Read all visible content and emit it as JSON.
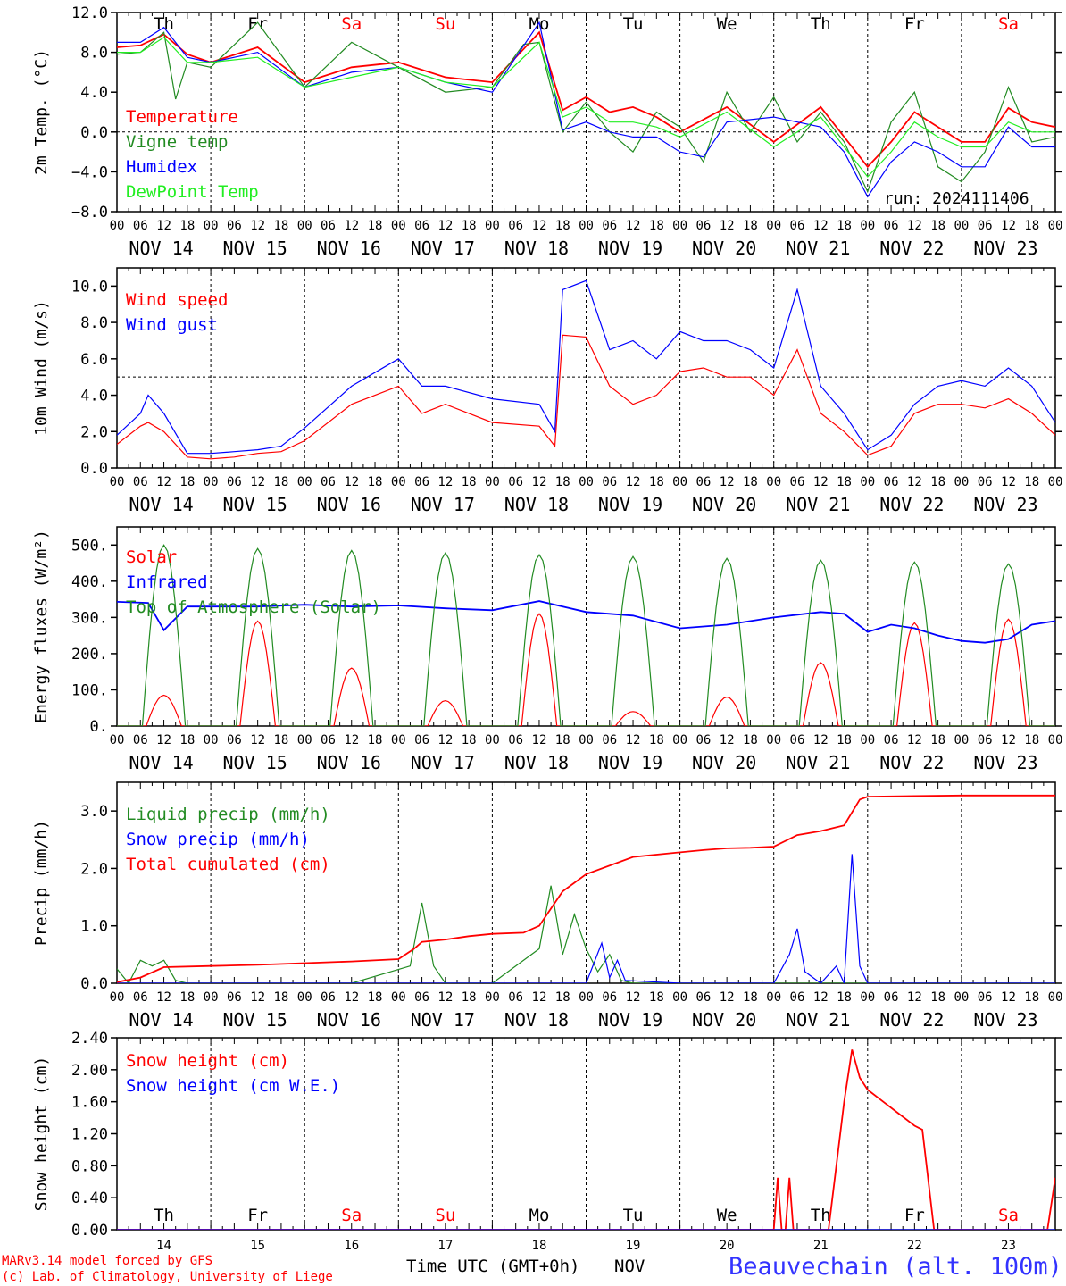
{
  "meta": {
    "run_label": "run: 2024111406",
    "footer_line1": "MARv3.14 model forced by GFS",
    "footer_line2": "(c) Lab. of Climatology, University of Liege",
    "x_axis_title": "Time UTC (GMT+0h)",
    "x_axis_month": "NOV",
    "station": "Beauvechain (alt. 100m)"
  },
  "days": {
    "hour_ticks": [
      "00",
      "06",
      "12",
      "18"
    ],
    "date_labels": [
      "NOV 14",
      "NOV 15",
      "NOV 16",
      "NOV 17",
      "NOV 18",
      "NOV 19",
      "NOV 20",
      "NOV 21",
      "NOV 22",
      "NOV 23"
    ],
    "weekdays": [
      "Th",
      "Fr",
      "Sa",
      "Su",
      "Mo",
      "Tu",
      "We",
      "Th",
      "Fr",
      "Sa"
    ],
    "weekday_colors": [
      "#000000",
      "#000000",
      "#ff0000",
      "#ff0000",
      "#000000",
      "#000000",
      "#000000",
      "#000000",
      "#000000",
      "#ff0000"
    ],
    "day_numbers": [
      "14",
      "15",
      "16",
      "17",
      "18",
      "19",
      "20",
      "21",
      "22",
      "23"
    ]
  },
  "colors": {
    "red": "#ff0000",
    "green": "#228b22",
    "blue": "#0000ff",
    "lightgreen": "#22ee22",
    "title_blue": "#3333ff"
  },
  "chart_data": [
    {
      "type": "line",
      "ylabel": "2m Temp. (°C)",
      "ylim": [
        -8,
        12
      ],
      "yticks": [
        "12.0",
        "8.0",
        "4.0",
        "0.0",
        "−4.0",
        "−8.0"
      ],
      "ytick_values": [
        12,
        8,
        4,
        0,
        -4,
        -8
      ],
      "reference_line": 0,
      "x_unit": "hours since NOV 14 00 UTC",
      "series": [
        {
          "name": "Temperature",
          "color": "#ff0000",
          "x": [
            0,
            6,
            12,
            18,
            24,
            36,
            48,
            60,
            72,
            84,
            96,
            108,
            114,
            120,
            126,
            132,
            138,
            144,
            156,
            168,
            180,
            192,
            198,
            204,
            210,
            216,
            222,
            228,
            234,
            240
          ],
          "y": [
            8.5,
            8.7,
            9.8,
            7.8,
            7.0,
            8.5,
            5.0,
            6.5,
            7.0,
            5.5,
            5.0,
            10.0,
            2.2,
            3.5,
            2.0,
            2.5,
            1.5,
            0.0,
            2.5,
            -1.0,
            2.5,
            -3.5,
            -1.0,
            2.0,
            0.5,
            -1.0,
            -1.0,
            2.4,
            1.0,
            0.5
          ]
        },
        {
          "name": "Vigne temp",
          "color": "#228b22",
          "x": [
            0,
            6,
            12,
            15,
            18,
            24,
            36,
            48,
            60,
            72,
            84,
            96,
            104,
            108,
            114,
            120,
            126,
            132,
            138,
            144,
            150,
            156,
            162,
            168,
            174,
            180,
            186,
            192,
            198,
            204,
            210,
            216,
            222,
            228,
            234,
            240
          ],
          "y": [
            7.8,
            8.0,
            10.0,
            3.3,
            7.0,
            6.5,
            11.0,
            4.5,
            9.0,
            6.5,
            4.0,
            4.5,
            8.8,
            9.0,
            0.0,
            3.0,
            0.0,
            -2.0,
            2.0,
            0.5,
            -3.0,
            4.0,
            0.0,
            3.5,
            -1.0,
            2.0,
            -1.0,
            -6.0,
            1.0,
            4.0,
            -3.5,
            -5.0,
            -2.0,
            4.5,
            -1.0,
            -0.5
          ]
        },
        {
          "name": "Humidex",
          "color": "#0000ff",
          "x": [
            0,
            6,
            12,
            18,
            24,
            36,
            48,
            60,
            72,
            84,
            96,
            108,
            114,
            120,
            126,
            132,
            138,
            144,
            150,
            156,
            168,
            180,
            186,
            192,
            198,
            204,
            210,
            216,
            222,
            228,
            234,
            240
          ],
          "y": [
            9.0,
            9.0,
            10.5,
            7.5,
            7.0,
            8.0,
            4.5,
            6.0,
            6.5,
            5.0,
            4.0,
            11.0,
            0.2,
            1.0,
            0.0,
            -0.5,
            -0.5,
            -2.0,
            -2.5,
            1.0,
            1.5,
            0.5,
            -2.0,
            -6.5,
            -3.0,
            -1.0,
            -2.0,
            -3.5,
            -3.5,
            0.5,
            -1.5,
            -1.5
          ]
        },
        {
          "name": "DewPoint Temp",
          "color": "#22ee22",
          "x": [
            0,
            6,
            12,
            18,
            24,
            36,
            48,
            60,
            72,
            84,
            96,
            108,
            114,
            120,
            126,
            132,
            138,
            144,
            156,
            168,
            180,
            192,
            198,
            204,
            210,
            216,
            222,
            228,
            234,
            240
          ],
          "y": [
            8.0,
            8.0,
            9.5,
            7.0,
            7.0,
            7.5,
            4.5,
            5.5,
            6.5,
            5.0,
            4.5,
            9.0,
            1.5,
            2.5,
            1.0,
            1.0,
            0.5,
            -0.5,
            2.0,
            -1.5,
            1.5,
            -4.5,
            -2.0,
            1.0,
            -0.5,
            -1.5,
            -1.5,
            1.0,
            0.0,
            0.0
          ]
        }
      ]
    },
    {
      "type": "line",
      "ylabel": "10m Wind (m/s)",
      "ylim": [
        0,
        11
      ],
      "yticks": [
        "10.0",
        "8.0",
        "6.0",
        "4.0",
        "2.0",
        "0.0"
      ],
      "ytick_values": [
        10,
        8,
        6,
        4,
        2,
        0
      ],
      "reference_line": 5,
      "x_unit": "hours since NOV 14 00 UTC",
      "series": [
        {
          "name": "Wind speed",
          "color": "#ff0000",
          "x": [
            0,
            6,
            8,
            12,
            18,
            24,
            30,
            36,
            42,
            48,
            60,
            72,
            78,
            84,
            96,
            108,
            112,
            114,
            120,
            126,
            132,
            138,
            144,
            150,
            156,
            162,
            168,
            174,
            180,
            186,
            192,
            198,
            204,
            210,
            216,
            222,
            228,
            234,
            240
          ],
          "y": [
            1.3,
            2.3,
            2.5,
            2.0,
            0.6,
            0.5,
            0.6,
            0.8,
            0.9,
            1.5,
            3.5,
            4.5,
            3.0,
            3.5,
            2.5,
            2.3,
            1.2,
            7.3,
            7.2,
            4.5,
            3.5,
            4.0,
            5.3,
            5.5,
            5.0,
            5.0,
            4.0,
            6.5,
            3.0,
            2.0,
            0.7,
            1.2,
            3.0,
            3.5,
            3.5,
            3.3,
            3.8,
            3.0,
            1.8
          ]
        },
        {
          "name": "Wind gust",
          "color": "#0000ff",
          "x": [
            0,
            6,
            8,
            12,
            18,
            24,
            30,
            36,
            42,
            48,
            60,
            72,
            78,
            84,
            96,
            108,
            112,
            114,
            120,
            126,
            132,
            138,
            144,
            150,
            156,
            162,
            168,
            174,
            180,
            186,
            192,
            198,
            204,
            210,
            216,
            222,
            228,
            234,
            240
          ],
          "y": [
            1.8,
            3.0,
            4.0,
            3.0,
            0.8,
            0.8,
            0.9,
            1.0,
            1.2,
            2.2,
            4.5,
            6.0,
            4.5,
            4.5,
            3.8,
            3.5,
            2.0,
            9.8,
            10.3,
            6.5,
            7.0,
            6.0,
            7.5,
            7.0,
            7.0,
            6.5,
            5.5,
            9.8,
            4.5,
            3.0,
            1.0,
            1.8,
            3.5,
            4.5,
            4.8,
            4.5,
            5.5,
            4.5,
            2.5
          ]
        }
      ]
    },
    {
      "type": "line",
      "ylabel": "Energy fluxes (W/m²)",
      "ylim": [
        0,
        550
      ],
      "yticks": [
        "500.",
        "400.",
        "300.",
        "200.",
        "100.",
        "0."
      ],
      "ytick_values": [
        500,
        400,
        300,
        200,
        100,
        0
      ],
      "x_unit": "hours since NOV 14 00 UTC",
      "series": [
        {
          "name": "Solar",
          "color": "#ff0000",
          "daily_peak": [
            85,
            290,
            160,
            70,
            310,
            40,
            80,
            175,
            285,
            295
          ]
        },
        {
          "name": "Infrared",
          "color": "#0000ff",
          "x": [
            0,
            8,
            12,
            18,
            24,
            36,
            48,
            60,
            72,
            84,
            96,
            108,
            120,
            132,
            144,
            156,
            168,
            180,
            186,
            192,
            198,
            204,
            210,
            216,
            222,
            228,
            234,
            240
          ],
          "y": [
            343,
            340,
            265,
            330,
            330,
            330,
            335,
            330,
            333,
            325,
            320,
            345,
            315,
            305,
            270,
            280,
            300,
            315,
            310,
            260,
            280,
            270,
            250,
            235,
            230,
            240,
            280,
            290
          ]
        },
        {
          "name": "Top of Atmosphere (Solar)",
          "color": "#228b22",
          "daily_peak": [
            500,
            490,
            485,
            478,
            473,
            468,
            463,
            458,
            453,
            448
          ]
        }
      ]
    },
    {
      "type": "line",
      "ylabel": "Precip (mm/h)",
      "ylim": [
        0,
        3.5
      ],
      "yticks": [
        "3.0",
        "2.0",
        "1.0",
        "0.0"
      ],
      "ytick_values": [
        3,
        2,
        1,
        0
      ],
      "x_unit": "hours since NOV 14 00 UTC",
      "series": [
        {
          "name": "Liquid precip (mm/h)",
          "color": "#228b22",
          "x": [
            0,
            3,
            6,
            9,
            12,
            15,
            18,
            24,
            60,
            75,
            78,
            81,
            84,
            96,
            108,
            111,
            114,
            117,
            120,
            123,
            126,
            129,
            132,
            144,
            240
          ],
          "y": [
            0.25,
            0.0,
            0.4,
            0.3,
            0.4,
            0.05,
            0.0,
            0.0,
            0.0,
            0.3,
            1.4,
            0.3,
            0.0,
            0.0,
            0.6,
            1.7,
            0.5,
            1.2,
            0.6,
            0.2,
            0.5,
            0.05,
            0.0,
            0.0,
            0.0
          ]
        },
        {
          "name": "Snow precip (mm/h)",
          "color": "#0000ff",
          "x": [
            0,
            120,
            124,
            126,
            128,
            130,
            144,
            168,
            172,
            174,
            176,
            180,
            184,
            186,
            188,
            190,
            192,
            240
          ],
          "y": [
            0.0,
            0.0,
            0.7,
            0.1,
            0.4,
            0.05,
            0.0,
            0.0,
            0.5,
            0.95,
            0.2,
            0.0,
            0.3,
            0.0,
            2.25,
            0.3,
            0.0,
            0.0
          ]
        },
        {
          "name": "Total cumulated (cm)",
          "color": "#ff0000",
          "x": [
            0,
            6,
            12,
            24,
            36,
            48,
            60,
            72,
            76,
            78,
            84,
            90,
            96,
            104,
            108,
            114,
            120,
            132,
            144,
            150,
            156,
            162,
            168,
            174,
            180,
            186,
            190,
            192,
            204,
            216,
            240
          ],
          "y": [
            0.02,
            0.1,
            0.28,
            0.3,
            0.32,
            0.35,
            0.38,
            0.42,
            0.6,
            0.72,
            0.76,
            0.82,
            0.86,
            0.88,
            1.0,
            1.6,
            1.9,
            2.2,
            2.28,
            2.32,
            2.35,
            2.36,
            2.38,
            2.58,
            2.65,
            2.75,
            3.2,
            3.25,
            3.26,
            3.27,
            3.27
          ]
        }
      ]
    },
    {
      "type": "line",
      "ylabel": "Snow height (cm)",
      "ylim": [
        0,
        2.4
      ],
      "yticks": [
        "2.40",
        "2.00",
        "1.60",
        "1.20",
        "0.80",
        "0.40",
        "0.00"
      ],
      "ytick_values": [
        2.4,
        2.0,
        1.6,
        1.2,
        0.8,
        0.4,
        0.0
      ],
      "x_unit": "hours since NOV 14 00 UTC",
      "series": [
        {
          "name": "Snow height (cm)",
          "color": "#ff0000",
          "x": [
            0,
            167,
            168,
            169,
            170,
            171,
            172,
            173,
            182,
            186,
            188,
            190,
            192,
            196,
            200,
            204,
            206,
            209,
            238,
            240
          ],
          "y": [
            0,
            0,
            0,
            0.65,
            0,
            0,
            0.65,
            0,
            0,
            1.6,
            2.25,
            1.9,
            1.75,
            1.6,
            1.45,
            1.3,
            1.25,
            0,
            0,
            0.65
          ]
        },
        {
          "name": "Snow height (cm W.E.)",
          "color": "#0000ff",
          "x": [
            0,
            240
          ],
          "y": [
            0,
            0
          ]
        }
      ]
    }
  ]
}
